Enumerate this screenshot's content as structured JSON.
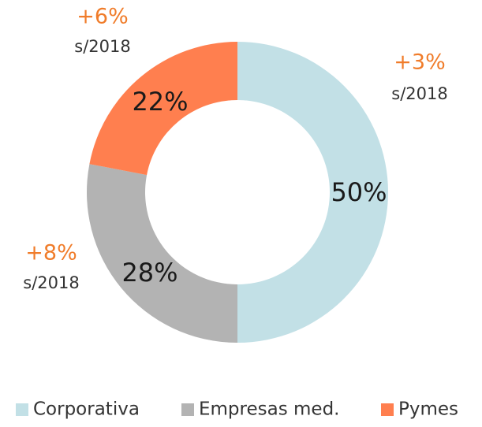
{
  "chart_data": {
    "type": "donut",
    "categories": [
      "Corporativa",
      "Empresas med.",
      "Pymes"
    ],
    "values": [
      50,
      28,
      22
    ],
    "value_labels": [
      "50%",
      "28%",
      "22%"
    ],
    "colors": [
      "#c2e0e6",
      "#b3b3b3",
      "#ff7f4f"
    ],
    "annotations": [
      {
        "label": "+3%",
        "sub": "s/2018"
      },
      {
        "label": "+8%",
        "sub": "s/2018"
      },
      {
        "label": "+6%",
        "sub": "s/2018"
      }
    ],
    "legend": "bottom"
  }
}
